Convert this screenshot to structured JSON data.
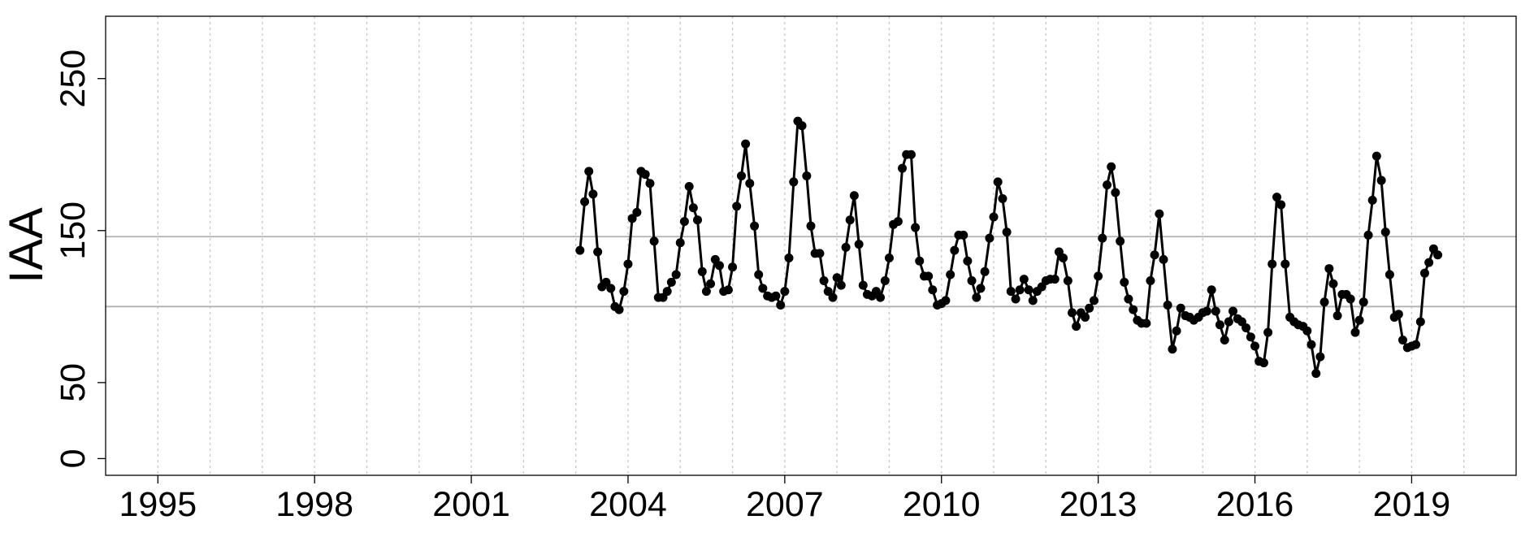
{
  "chart_data": {
    "type": "line",
    "y_label": "IAA",
    "xlim": [
      1994,
      2021
    ],
    "xticks": [
      1995,
      1998,
      2001,
      2004,
      2007,
      2010,
      2013,
      2016,
      2019
    ],
    "x_gridlines": [
      1995,
      1996,
      1997,
      1998,
      1999,
      2000,
      2001,
      2002,
      2003,
      2004,
      2005,
      2006,
      2007,
      2008,
      2009,
      2010,
      2011,
      2012,
      2013,
      2014,
      2015,
      2016,
      2017,
      2018,
      2019,
      2020
    ],
    "ylim": [
      -11,
      291
    ],
    "yticks": [
      0,
      50,
      150,
      250
    ],
    "hlines": [
      146,
      100
    ],
    "hline_color": "#b0b0b0",
    "series": [
      {
        "color": "#000000",
        "x": [
          2003.08,
          2003.17,
          2003.25,
          2003.33,
          2003.42,
          2003.5,
          2003.58,
          2003.67,
          2003.75,
          2003.83,
          2003.92,
          2004,
          2004.08,
          2004.17,
          2004.25,
          2004.33,
          2004.42,
          2004.5,
          2004.58,
          2004.67,
          2004.75,
          2004.83,
          2004.92,
          2005,
          2005.08,
          2005.17,
          2005.25,
          2005.33,
          2005.42,
          2005.5,
          2005.58,
          2005.67,
          2005.75,
          2005.83,
          2005.92,
          2006,
          2006.08,
          2006.17,
          2006.25,
          2006.33,
          2006.42,
          2006.5,
          2006.58,
          2006.67,
          2006.75,
          2006.83,
          2006.92,
          2007,
          2007.08,
          2007.17,
          2007.25,
          2007.33,
          2007.42,
          2007.5,
          2007.58,
          2007.67,
          2007.75,
          2007.83,
          2007.92,
          2008,
          2008.08,
          2008.17,
          2008.25,
          2008.33,
          2008.42,
          2008.5,
          2008.58,
          2008.67,
          2008.75,
          2008.83,
          2008.92,
          2009,
          2009.08,
          2009.17,
          2009.25,
          2009.33,
          2009.42,
          2009.5,
          2009.58,
          2009.67,
          2009.75,
          2009.83,
          2009.92,
          2010,
          2010.08,
          2010.17,
          2010.25,
          2010.33,
          2010.42,
          2010.5,
          2010.58,
          2010.67,
          2010.75,
          2010.83,
          2010.92,
          2011,
          2011.08,
          2011.17,
          2011.25,
          2011.33,
          2011.42,
          2011.5,
          2011.58,
          2011.67,
          2011.75,
          2011.83,
          2011.92,
          2012,
          2012.08,
          2012.17,
          2012.25,
          2012.33,
          2012.42,
          2012.5,
          2012.58,
          2012.67,
          2012.75,
          2012.83,
          2012.92,
          2013,
          2013.08,
          2013.17,
          2013.25,
          2013.33,
          2013.42,
          2013.5,
          2013.58,
          2013.67,
          2013.75,
          2013.83,
          2013.92,
          2014,
          2014.08,
          2014.17,
          2014.25,
          2014.33,
          2014.42,
          2014.5,
          2014.58,
          2014.67,
          2014.75,
          2014.83,
          2014.92,
          2015,
          2015.08,
          2015.17,
          2015.25,
          2015.33,
          2015.42,
          2015.5,
          2015.58,
          2015.67,
          2015.75,
          2015.83,
          2015.92,
          2016,
          2016.08,
          2016.17,
          2016.25,
          2016.33,
          2016.42,
          2016.5,
          2016.58,
          2016.67,
          2016.75,
          2016.83,
          2016.92,
          2017,
          2017.08,
          2017.17,
          2017.25,
          2017.33,
          2017.42,
          2017.5,
          2017.58,
          2017.67,
          2017.75,
          2017.83,
          2017.92,
          2018,
          2018.08,
          2018.17,
          2018.25,
          2018.33,
          2018.42,
          2018.5,
          2018.58,
          2018.67,
          2018.75,
          2018.83,
          2018.92,
          2019,
          2019.08,
          2019.17,
          2019.25,
          2019.33,
          2019.42,
          2019.5
        ],
        "values": [
          137,
          169,
          189,
          174,
          136,
          113,
          116,
          112,
          100,
          98,
          110,
          128,
          158,
          162,
          189,
          187,
          181,
          143,
          106,
          106,
          110,
          116,
          121,
          142,
          156,
          179,
          165,
          157,
          123,
          110,
          115,
          131,
          127,
          110,
          111,
          126,
          166,
          186,
          207,
          181,
          153,
          121,
          112,
          107,
          106,
          107,
          101,
          110,
          132,
          182,
          222,
          219,
          186,
          153,
          135,
          135,
          117,
          110,
          106,
          119,
          114,
          139,
          157,
          173,
          141,
          114,
          108,
          107,
          110,
          106,
          117,
          132,
          154,
          156,
          191,
          200,
          200,
          152,
          130,
          120,
          120,
          111,
          101,
          102,
          104,
          121,
          137,
          147,
          147,
          130,
          117,
          106,
          112,
          123,
          145,
          159,
          182,
          171,
          149,
          110,
          105,
          111,
          118,
          111,
          104,
          110,
          113,
          117,
          118,
          118,
          136,
          132,
          117,
          96,
          87,
          96,
          93,
          99,
          104,
          120,
          145,
          180,
          192,
          175,
          143,
          116,
          105,
          98,
          91,
          89,
          89,
          117,
          134,
          161,
          131,
          101,
          72,
          84,
          99,
          94,
          93,
          91,
          93,
          96,
          97,
          111,
          97,
          88,
          78,
          90,
          97,
          92,
          90,
          86,
          80,
          74,
          64,
          63,
          83,
          128,
          172,
          167,
          128,
          93,
          90,
          88,
          87,
          84,
          75,
          56,
          67,
          103,
          125,
          115,
          94,
          108,
          108,
          105,
          83,
          91,
          103,
          147,
          170,
          199,
          183,
          149,
          121,
          93,
          95,
          78,
          73,
          74,
          75,
          90,
          122,
          129,
          138,
          134
        ]
      }
    ]
  }
}
